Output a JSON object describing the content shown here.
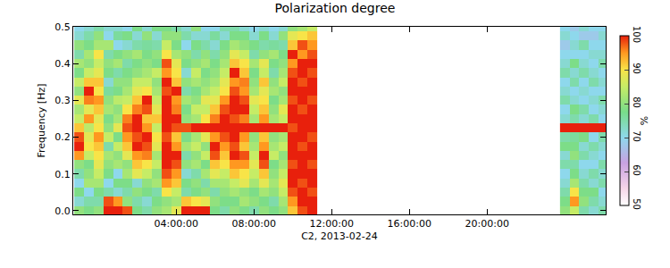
{
  "chart_data": {
    "type": "heatmap",
    "title": "Polarization degree",
    "x_label": "C2, 2013-02-24",
    "y_label": "Frequency [Hz]",
    "colorbar_label": "%",
    "xlim": [
      -1.3,
      26.1
    ],
    "xticks": [
      {
        "value": 4,
        "label": "04:00:00"
      },
      {
        "value": 8,
        "label": "08:00:00"
      },
      {
        "value": 12,
        "label": "12:00:00"
      },
      {
        "value": 16,
        "label": "16:00:00"
      },
      {
        "value": 20,
        "label": "20:00:00"
      }
    ],
    "ylim": [
      -0.01,
      0.5
    ],
    "yticks": [
      {
        "value": 0,
        "label": "0.0"
      },
      0.1,
      0.2,
      0.3,
      0.4,
      0.5
    ],
    "color_range": [
      50,
      100
    ],
    "color_ticks": [
      50,
      60,
      70,
      80,
      90,
      100
    ],
    "y": [
      0.0,
      0.025,
      0.05,
      0.075,
      0.1,
      0.125,
      0.15,
      0.175,
      0.2,
      0.225,
      0.25,
      0.275,
      0.3,
      0.325,
      0.35,
      0.375,
      0.4,
      0.425,
      0.45,
      0.475,
      0.5
    ],
    "segments": [
      {
        "x": [
          -1.0,
          -0.5,
          0.0,
          0.5,
          1.0,
          1.5,
          2.0,
          2.5,
          3.0,
          3.5,
          4.0,
          4.5,
          5.0,
          5.5,
          6.0,
          6.5,
          7.0,
          7.5,
          8.0,
          8.5,
          9.0,
          9.5,
          10.0,
          10.5,
          11.0
        ],
        "cells_by_x": [
          [
            80,
            72,
            78,
            70,
            75,
            80,
            95,
            100,
            98,
            92,
            85,
            82,
            88,
            80,
            85,
            78,
            82,
            75,
            80,
            72,
            70
          ],
          [
            78,
            75,
            70,
            82,
            80,
            78,
            85,
            90,
            88,
            84,
            95,
            88,
            96,
            100,
            92,
            85,
            80,
            82,
            78,
            75,
            72
          ],
          [
            80,
            75,
            78,
            82,
            85,
            88,
            90,
            92,
            95,
            90,
            88,
            92,
            95,
            90,
            92,
            88,
            85,
            90,
            82,
            80,
            75
          ],
          [
            100,
            98,
            75,
            70,
            78,
            80,
            82,
            75,
            85,
            80,
            78,
            82,
            80,
            76,
            72,
            78,
            80,
            75,
            82,
            70,
            72
          ],
          [
            100,
            95,
            72,
            78,
            70,
            82,
            80,
            85,
            78,
            88,
            82,
            80,
            84,
            78,
            80,
            75,
            82,
            78,
            70,
            76,
            72
          ],
          [
            98,
            80,
            75,
            78,
            82,
            80,
            88,
            92,
            95,
            98,
            96,
            90,
            85,
            82,
            80,
            78,
            75,
            80,
            72,
            78,
            70
          ],
          [
            78,
            75,
            80,
            72,
            88,
            92,
            95,
            100,
            98,
            100,
            100,
            96,
            92,
            88,
            85,
            80,
            78,
            82,
            75,
            72,
            78
          ],
          [
            75,
            72,
            78,
            80,
            85,
            90,
            96,
            98,
            100,
            95,
            92,
            98,
            100,
            90,
            85,
            82,
            80,
            78,
            76,
            80,
            72
          ],
          [
            80,
            78,
            75,
            82,
            80,
            85,
            82,
            88,
            90,
            85,
            92,
            88,
            85,
            82,
            80,
            85,
            78,
            80,
            75,
            72,
            78
          ],
          [
            82,
            80,
            90,
            95,
            98,
            100,
            100,
            100,
            98,
            100,
            100,
            100,
            100,
            98,
            100,
            95,
            98,
            90,
            85,
            80,
            78
          ],
          [
            88,
            82,
            85,
            92,
            95,
            98,
            100,
            95,
            92,
            98,
            100,
            96,
            95,
            100,
            92,
            90,
            88,
            82,
            78,
            80,
            75
          ],
          [
            100,
            92,
            75,
            78,
            72,
            80,
            75,
            82,
            78,
            98,
            80,
            78,
            82,
            75,
            80,
            72,
            78,
            80,
            70,
            75,
            72
          ],
          [
            100,
            90,
            78,
            80,
            75,
            82,
            80,
            85,
            82,
            100,
            82,
            85,
            80,
            78,
            82,
            85,
            80,
            75,
            78,
            72,
            80
          ],
          [
            100,
            88,
            80,
            75,
            82,
            78,
            85,
            80,
            88,
            100,
            90,
            85,
            88,
            82,
            80,
            78,
            82,
            80,
            75,
            72,
            70
          ],
          [
            78,
            80,
            75,
            82,
            88,
            92,
            98,
            100,
            95,
            100,
            96,
            92,
            88,
            85,
            82,
            80,
            78,
            75,
            72,
            76,
            70
          ],
          [
            75,
            78,
            80,
            82,
            85,
            90,
            92,
            95,
            98,
            100,
            100,
            98,
            95,
            90,
            88,
            85,
            82,
            80,
            78,
            72,
            75
          ],
          [
            80,
            78,
            82,
            85,
            92,
            95,
            100,
            98,
            100,
            100,
            98,
            100,
            100,
            98,
            95,
            100,
            92,
            88,
            82,
            78,
            75
          ],
          [
            78,
            82,
            80,
            88,
            90,
            95,
            98,
            92,
            95,
            100,
            96,
            100,
            98,
            95,
            96,
            92,
            90,
            85,
            80,
            78,
            72
          ],
          [
            75,
            80,
            78,
            82,
            85,
            88,
            85,
            82,
            80,
            100,
            82,
            85,
            88,
            82,
            80,
            78,
            82,
            75,
            78,
            72,
            70
          ],
          [
            80,
            78,
            82,
            88,
            92,
            98,
            100,
            95,
            92,
            100,
            95,
            92,
            90,
            88,
            92,
            85,
            88,
            80,
            75,
            78,
            72
          ],
          [
            78,
            75,
            80,
            82,
            80,
            78,
            85,
            82,
            80,
            100,
            82,
            80,
            78,
            82,
            80,
            75,
            78,
            82,
            76,
            72,
            70
          ],
          [
            80,
            82,
            85,
            88,
            85,
            82,
            80,
            85,
            82,
            100,
            85,
            88,
            82,
            80,
            85,
            82,
            80,
            78,
            75,
            80,
            72
          ],
          [
            92,
            95,
            98,
            100,
            100,
            98,
            100,
            100,
            100,
            98,
            100,
            100,
            98,
            100,
            100,
            98,
            95,
            100,
            92,
            88,
            80
          ],
          [
            98,
            100,
            100,
            98,
            100,
            100,
            100,
            98,
            100,
            100,
            100,
            98,
            100,
            100,
            98,
            100,
            100,
            95,
            98,
            90,
            82
          ],
          [
            100,
            100,
            98,
            100,
            100,
            98,
            100,
            100,
            98,
            100,
            100,
            100,
            98,
            100,
            100,
            98,
            100,
            98,
            95,
            92,
            85
          ]
        ]
      },
      {
        "x": [
          24.0,
          24.5,
          25.0,
          25.5,
          26.0
        ],
        "cells_by_x": [
          [
            80,
            78,
            75,
            72,
            70,
            75,
            72,
            78,
            75,
            100,
            72,
            70,
            75,
            72,
            70,
            75,
            72,
            70,
            68,
            72,
            70
          ],
          [
            85,
            95,
            90,
            82,
            78,
            75,
            80,
            78,
            76,
            100,
            75,
            78,
            72,
            70,
            75,
            72,
            78,
            70,
            72,
            70,
            68
          ],
          [
            75,
            80,
            78,
            75,
            72,
            70,
            75,
            72,
            78,
            100,
            72,
            75,
            70,
            72,
            70,
            75,
            72,
            70,
            75,
            68,
            72
          ],
          [
            72,
            75,
            78,
            72,
            75,
            70,
            72,
            75,
            70,
            100,
            75,
            70,
            72,
            70,
            75,
            72,
            70,
            72,
            70,
            68,
            70
          ],
          [
            75,
            72,
            70,
            75,
            72,
            75,
            70,
            72,
            75,
            100,
            70,
            72,
            75,
            70,
            72,
            70,
            75,
            72,
            70,
            72,
            70
          ]
        ]
      }
    ]
  }
}
